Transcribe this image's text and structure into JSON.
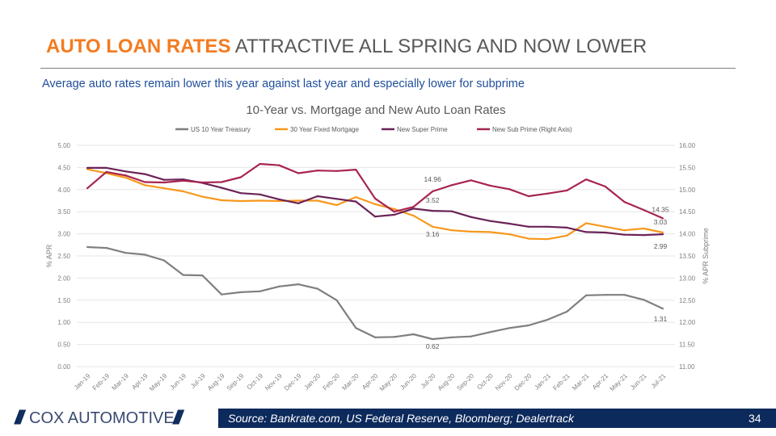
{
  "header": {
    "accent": "AUTO LOAN RATES",
    "rest": " ATTRACTIVE ALL SPRING AND NOW LOWER"
  },
  "subtitle": "Average auto rates remain lower this year against last year and especially lower for subprime",
  "footer": {
    "logo": "COX AUTOMOTIVE",
    "source": "Source: Bankrate.com, US Federal Reserve, Bloomberg; Dealertrack",
    "page": "34"
  },
  "colors": {
    "accent": "#f47b20",
    "navy": "#0d2a5c",
    "subtitle": "#1f4e9a"
  },
  "chart_data": {
    "type": "line",
    "title": "10-Year vs. Mortgage and New Auto Loan Rates",
    "ylabel": "% APR",
    "y2label": "% APR Subprime",
    "ylim": [
      0,
      5
    ],
    "y2lim": [
      11,
      16
    ],
    "yticks": [
      "0.00",
      "0.50",
      "1.00",
      "1.50",
      "2.00",
      "2.50",
      "3.00",
      "3.50",
      "4.00",
      "4.50",
      "5.00"
    ],
    "y2ticks": [
      "11.00",
      "11.50",
      "12.00",
      "12.50",
      "13.00",
      "13.50",
      "14.00",
      "14.50",
      "15.00",
      "15.50",
      "16.00"
    ],
    "legend": "top",
    "grid": true,
    "categories": [
      "Jan-19",
      "Feb-19",
      "Mar-19",
      "Apr-19",
      "May-19",
      "Jun-19",
      "Jul-19",
      "Aug-19",
      "Sep-19",
      "Oct-19",
      "Nov-19",
      "Dec-19",
      "Jan-20",
      "Feb-20",
      "Mar-20",
      "Apr-20",
      "May-20",
      "Jun-20",
      "Jul-20",
      "Aug-20",
      "Sep-20",
      "Oct-20",
      "Nov-20",
      "Dec-20",
      "Jan-21",
      "Feb-21",
      "Mar-21",
      "Apr-21",
      "May-21",
      "Jun-21",
      "Jul-21"
    ],
    "series": [
      {
        "name": "US 10 Year Treasury",
        "axis": "left",
        "color": "#7f7f7f",
        "values": [
          2.7,
          2.68,
          2.57,
          2.53,
          2.4,
          2.07,
          2.06,
          1.63,
          1.68,
          1.7,
          1.81,
          1.86,
          1.76,
          1.5,
          0.87,
          0.66,
          0.67,
          0.73,
          0.62,
          0.66,
          0.68,
          0.78,
          0.87,
          0.93,
          1.06,
          1.24,
          1.61,
          1.62,
          1.62,
          1.51,
          1.31
        ],
        "labels": [
          {
            "index": 18,
            "text": "0.62"
          },
          {
            "index": 30,
            "text": "1.31"
          }
        ]
      },
      {
        "name": "30 Year Fixed Mortgage",
        "axis": "left",
        "color": "#f7981d",
        "values": [
          4.46,
          4.37,
          4.27,
          4.1,
          4.03,
          3.96,
          3.84,
          3.76,
          3.74,
          3.75,
          3.74,
          3.75,
          3.75,
          3.65,
          3.83,
          3.67,
          3.56,
          3.41,
          3.16,
          3.08,
          3.05,
          3.04,
          2.99,
          2.89,
          2.88,
          2.96,
          3.24,
          3.16,
          3.08,
          3.12,
          3.03
        ],
        "labels": [
          {
            "index": 18,
            "text": "3.16"
          },
          {
            "index": 30,
            "text": "3.03"
          }
        ]
      },
      {
        "name": "New Super Prime",
        "axis": "left",
        "color": "#6b2358",
        "values": [
          4.49,
          4.49,
          4.41,
          4.35,
          4.22,
          4.23,
          4.15,
          4.04,
          3.92,
          3.89,
          3.78,
          3.69,
          3.85,
          3.79,
          3.73,
          3.39,
          3.43,
          3.57,
          3.52,
          3.51,
          3.38,
          3.29,
          3.23,
          3.16,
          3.16,
          3.14,
          3.04,
          3.03,
          2.98,
          2.97,
          2.99
        ],
        "labels": [
          {
            "index": 18,
            "text": "3.52"
          },
          {
            "index": 30,
            "text": "2.99"
          }
        ]
      },
      {
        "name": "New Sub Prime (Right Axis)",
        "axis": "right",
        "color": "#a8244f",
        "values": [
          15.03,
          15.4,
          15.32,
          15.17,
          15.16,
          15.2,
          15.16,
          15.17,
          15.28,
          15.58,
          15.55,
          15.37,
          15.43,
          15.42,
          15.45,
          14.8,
          14.5,
          14.61,
          14.96,
          15.1,
          15.21,
          15.09,
          15.01,
          14.85,
          14.91,
          14.98,
          15.23,
          15.07,
          14.72,
          14.54,
          14.35
        ],
        "labels": [
          {
            "index": 18,
            "text": "14.96"
          },
          {
            "index": 30,
            "text": "14.35"
          }
        ]
      }
    ]
  }
}
